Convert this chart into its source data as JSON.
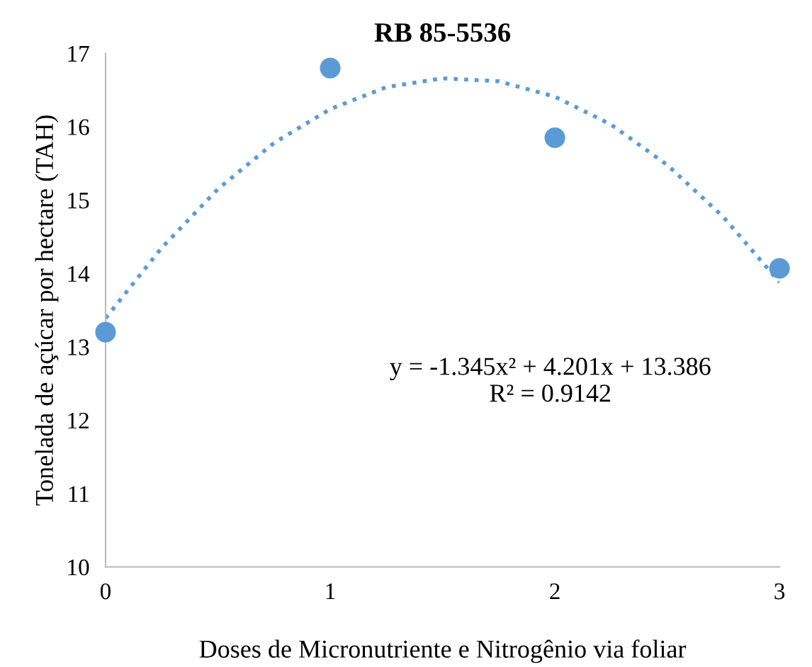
{
  "chart_data": {
    "type": "scatter",
    "title": "RB 85-5536",
    "xlabel": "Doses de Micronutriente e Nitrogênio via foliar",
    "ylabel": "Tonelada de açúcar por hectare (TAH)",
    "series": [
      {
        "color": "#5b9bd5",
        "x": [
          0,
          1,
          2,
          3
        ],
        "values": [
          13.2,
          16.8,
          15.85,
          14.07
        ],
        "marker": "circle"
      },
      {
        "type": "line",
        "color": "#5b9bd5",
        "line_style": "dotted",
        "marker": "none",
        "x": [
          0,
          0.25,
          0.5,
          0.75,
          1,
          1.25,
          1.5,
          1.75,
          2,
          2.25,
          2.5,
          2.75,
          3
        ],
        "values": [
          13.39,
          14.35,
          15.15,
          15.78,
          16.24,
          16.54,
          16.66,
          16.62,
          16.41,
          16.03,
          15.48,
          14.77,
          13.88
        ]
      }
    ],
    "annotations": [
      "y = -1.345x² + 4.201x + 13.386\nR² = 0.9142"
    ],
    "xlim": [
      0,
      3
    ],
    "xticks": [
      0,
      1,
      2,
      3
    ],
    "ylim": [
      10,
      17
    ],
    "yticks": [
      10,
      11,
      12,
      13,
      14,
      15,
      16,
      17
    ],
    "grid": false,
    "legend": false
  }
}
